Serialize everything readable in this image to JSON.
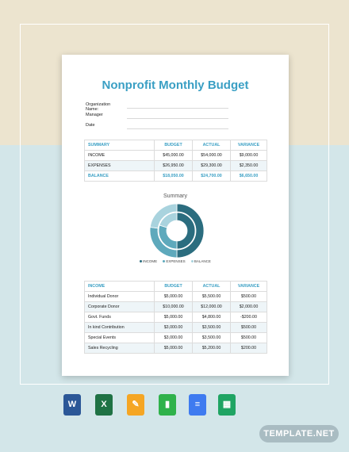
{
  "document": {
    "title": "Nonprofit Monthly Budget",
    "fields": [
      {
        "label": "Organization Name:"
      },
      {
        "label": "Manager"
      },
      {
        "label": "Date"
      }
    ]
  },
  "summary_table": {
    "headers": [
      "SUMMARY",
      "BUDGET",
      "ACTUAL",
      "VARIANCE"
    ],
    "rows": [
      [
        "INCOME",
        "$45,000.00",
        "$54,000.00",
        "$9,000.00"
      ],
      [
        "EXPENSES",
        "$26,950.00",
        "$29,300.00",
        "$2,350.00"
      ],
      [
        "BALANCE",
        "$18,050.00",
        "$24,700.00",
        "$6,650.00"
      ]
    ]
  },
  "chart_data": {
    "type": "pie",
    "title": "Summary",
    "legend": [
      "INCOME",
      "EXPENSES",
      "BALANCE"
    ],
    "colors": [
      "#2b6d7f",
      "#5ea9bc",
      "#a9d3de"
    ],
    "rings": [
      {
        "values": [
          54000,
          29300,
          24700
        ]
      },
      {
        "values": [
          45000,
          26950,
          18050
        ]
      }
    ]
  },
  "income_table": {
    "headers": [
      "INCOME",
      "BUDGET",
      "ACTUAL",
      "VARIANCE"
    ],
    "rows": [
      [
        "Individual Donor",
        "$5,000.00",
        "$5,500.00",
        "$500.00"
      ],
      [
        "Corporate Donor",
        "$10,000.00",
        "$12,000.00",
        "$2,000.00"
      ],
      [
        "Govt. Funds",
        "$5,000.00",
        "$4,800.00",
        "-$200.00"
      ],
      [
        "In kind Contribution",
        "$3,000.00",
        "$3,500.00",
        "$500.00"
      ],
      [
        "Special Events",
        "$3,000.00",
        "$3,500.00",
        "$500.00"
      ],
      [
        "Sales Recycling",
        "$5,000.00",
        "$5,200.00",
        "$200.00"
      ]
    ]
  },
  "apps": [
    {
      "icon": "word-icon",
      "glyph": "W",
      "color": "#2b5797"
    },
    {
      "icon": "excel-icon",
      "glyph": "X",
      "color": "#1f7244"
    },
    {
      "icon": "pages-icon",
      "glyph": "✎",
      "color": "#f5a623"
    },
    {
      "icon": "numbers-icon",
      "glyph": "▮",
      "color": "#2fb24b"
    },
    {
      "icon": "google-docs-icon",
      "glyph": "≡",
      "color": "#3e7bf0"
    },
    {
      "icon": "google-sheets-icon",
      "glyph": "▦",
      "color": "#1fa463"
    }
  ],
  "brand": "TEMPLATE.NET"
}
